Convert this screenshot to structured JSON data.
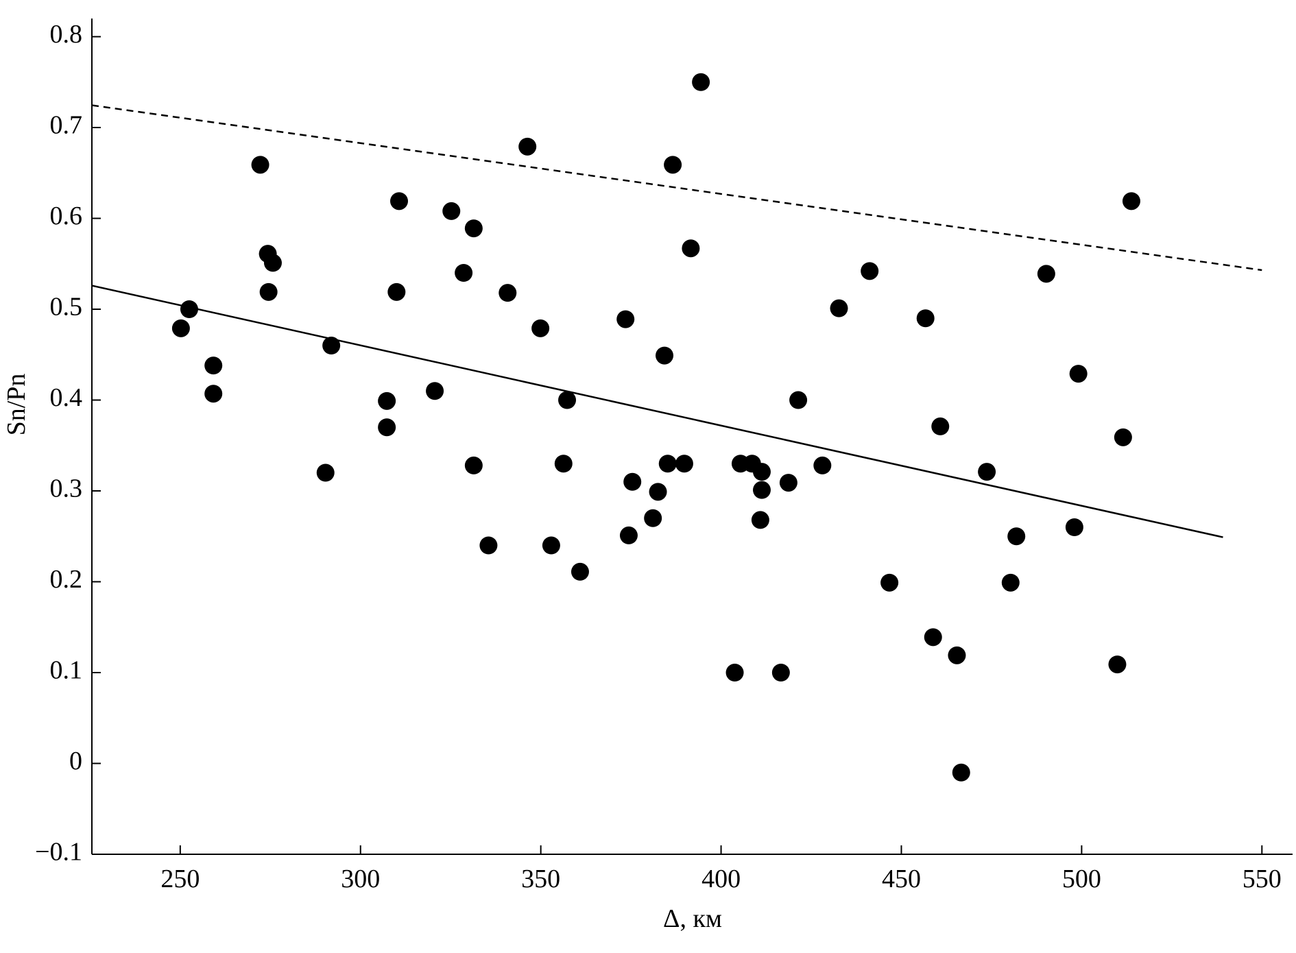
{
  "chart_data": {
    "type": "scatter",
    "x_label": "Δ, км",
    "y_label": "Sn/Pn",
    "x": [
      250.2,
      252.5,
      259.2,
      259.2,
      272.2,
      274.3,
      275.7,
      274.5,
      290.3,
      291.9,
      307.3,
      307.3,
      310.7,
      310.0,
      320.6,
      325.2,
      328.6,
      331.4,
      331.4,
      335.5,
      340.8,
      346.3,
      349.9,
      352.9,
      357.3,
      356.3,
      360.9,
      373.5,
      374.4,
      375.4,
      381.1,
      382.5,
      384.3,
      385.2,
      386.6,
      389.8,
      391.6,
      394.4,
      403.8,
      405.4,
      408.6,
      411.3,
      411.3,
      410.9,
      416.6,
      418.7,
      421.4,
      428.1,
      432.7,
      441.2,
      446.7,
      456.7,
      458.8,
      460.8,
      465.4,
      466.6,
      473.7,
      480.3,
      481.9,
      490.2,
      498.0,
      499.1,
      509.9,
      511.5,
      513.8
    ],
    "y": [
      0.479,
      0.5,
      0.438,
      0.407,
      0.659,
      0.561,
      0.551,
      0.519,
      0.32,
      0.46,
      0.399,
      0.37,
      0.619,
      0.519,
      0.41,
      0.608,
      0.54,
      0.589,
      0.328,
      0.24,
      0.518,
      0.679,
      0.479,
      0.24,
      0.4,
      0.33,
      0.211,
      0.489,
      0.251,
      0.31,
      0.27,
      0.299,
      0.449,
      0.33,
      0.659,
      0.33,
      0.567,
      0.75,
      0.1,
      0.33,
      0.33,
      0.321,
      0.301,
      0.268,
      0.1,
      0.309,
      0.4,
      0.328,
      0.501,
      0.542,
      0.199,
      0.49,
      0.139,
      0.371,
      0.119,
      -0.01,
      0.321,
      0.199,
      0.25,
      0.539,
      0.26,
      0.429,
      0.109,
      0.359,
      0.619
    ],
    "color": "#000000",
    "lines": [
      {
        "x": [
          225.5,
          550
        ],
        "y": [
          0.7245,
          0.543
        ],
        "style": "dashed",
        "color": "#000000"
      },
      {
        "x": [
          225.5,
          539.2
        ],
        "y": [
          0.526,
          0.249
        ],
        "style": "solid",
        "color": "#000000"
      }
    ],
    "xlim": [
      225.5,
      558.5
    ],
    "ylim": [
      -0.1,
      0.82
    ],
    "xticks": [
      250,
      300,
      350,
      400,
      450,
      500,
      550
    ],
    "yticks": [
      {
        "value": -0.1,
        "label": "−0.1"
      },
      0,
      0.1,
      0.2,
      0.3,
      0.4,
      0.5,
      0.6,
      0.7,
      0.8
    ],
    "grid": false
  }
}
